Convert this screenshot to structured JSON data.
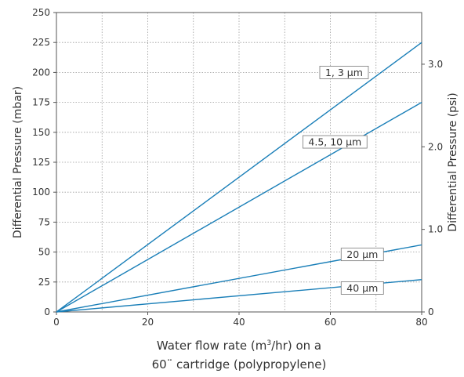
{
  "chart_data": {
    "type": "line",
    "ylabel": "Differential Pressure (mbar)",
    "y2label": "Differential Pressure (psi)",
    "xlabel_line1": "Water flow rate (m",
    "xlabel_sup": "3",
    "xlabel_line1_end": "/hr) on a",
    "xlabel_line2": "60¨ cartridge (polypropylene)",
    "xlim": [
      0,
      80
    ],
    "ylim": [
      0,
      250
    ],
    "x_ticks": [
      0,
      20,
      40,
      60,
      80
    ],
    "y_ticks": [
      0,
      25,
      50,
      75,
      100,
      125,
      150,
      175,
      200,
      225,
      250
    ],
    "y2_ticks": [
      {
        "label": "0",
        "psi": 0
      },
      {
        "label": "1.0",
        "psi": 1.0
      },
      {
        "label": "2.0",
        "psi": 2.0
      },
      {
        "label": "3.0",
        "psi": 3.0
      }
    ],
    "psi_to_mbar": 68.95,
    "grid": true,
    "line_color": "#1a7fb8",
    "series": [
      {
        "name": "1, 3 µm",
        "x": [
          0,
          80
        ],
        "y": [
          0,
          225
        ],
        "label_x": 63,
        "label_y": 200
      },
      {
        "name": "4.5, 10 µm",
        "x": [
          0,
          80
        ],
        "y": [
          0,
          175
        ],
        "label_x": 61,
        "label_y": 142
      },
      {
        "name": "20 µm",
        "x": [
          0,
          80
        ],
        "y": [
          0,
          56
        ],
        "label_x": 67,
        "label_y": 48
      },
      {
        "name": "40 µm",
        "x": [
          0,
          80
        ],
        "y": [
          0,
          27
        ],
        "label_x": 67,
        "label_y": 20
      }
    ]
  }
}
